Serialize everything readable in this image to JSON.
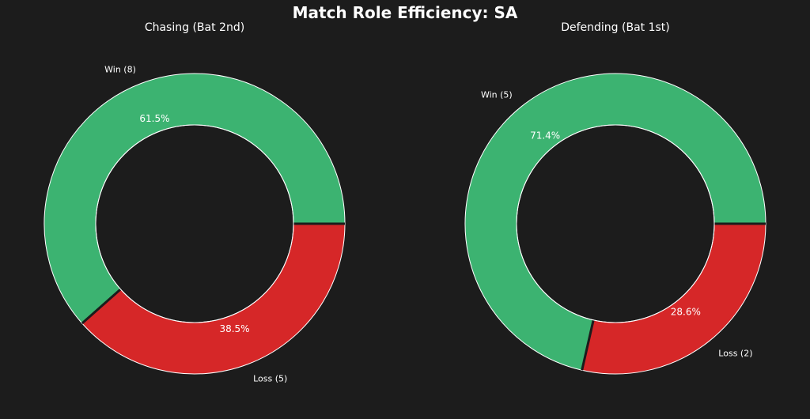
{
  "title": "Match Role Efficiency: SA",
  "colors": {
    "background": "#1c1c1c",
    "win": "#3cb371",
    "loss": "#d62728",
    "edge": "#ffffff",
    "text": "#ffffff"
  },
  "chart_data": [
    {
      "type": "pie",
      "variant": "donut",
      "title": "Chasing (Bat 2nd)",
      "start_angle_deg": 0,
      "direction": "counterclockwise",
      "slices": [
        {
          "label": "Win (8)",
          "value": 8,
          "percent_label": "61.5%",
          "color": "#3cb371"
        },
        {
          "label": "Loss (5)",
          "value": 5,
          "percent_label": "38.5%",
          "color": "#d62728"
        }
      ]
    },
    {
      "type": "pie",
      "variant": "donut",
      "title": "Defending (Bat 1st)",
      "start_angle_deg": 0,
      "direction": "counterclockwise",
      "slices": [
        {
          "label": "Win (5)",
          "value": 5,
          "percent_label": "71.4%",
          "color": "#3cb371"
        },
        {
          "label": "Loss (2)",
          "value": 2,
          "percent_label": "28.6%",
          "color": "#d62728"
        }
      ]
    }
  ]
}
